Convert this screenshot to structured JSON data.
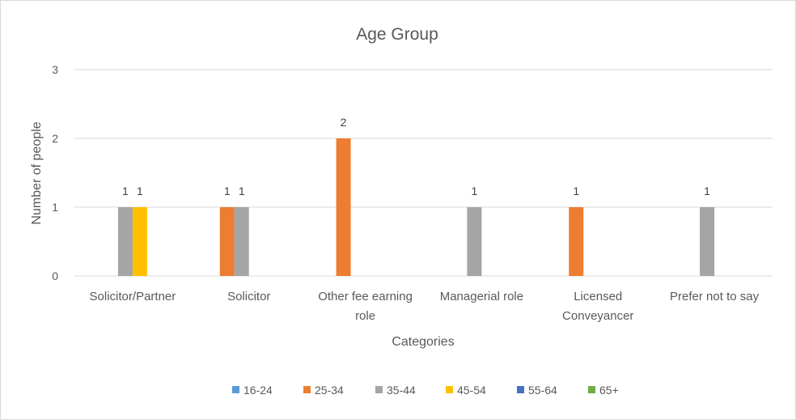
{
  "chart_data": {
    "type": "bar",
    "title": "Age Group",
    "xlabel": "Categories",
    "ylabel": "Number of people",
    "ylim": [
      0,
      3
    ],
    "yticks": [
      "0",
      "1",
      "2",
      "3"
    ],
    "categories": [
      [
        "Solicitor/Partner"
      ],
      [
        "Solicitor"
      ],
      [
        "Other fee earning",
        "role"
      ],
      [
        "Managerial role"
      ],
      [
        "Licensed",
        "Conveyancer"
      ],
      [
        "Prefer not to say"
      ]
    ],
    "series": [
      {
        "name": "16-24",
        "color": "#5B9BD5",
        "values": [
          0,
          0,
          0,
          0,
          0,
          0
        ]
      },
      {
        "name": "25-34",
        "color": "#ED7D31",
        "values": [
          0,
          1,
          2,
          0,
          1,
          0
        ]
      },
      {
        "name": "35-44",
        "color": "#A5A5A5",
        "values": [
          1,
          1,
          0,
          1,
          0,
          1
        ]
      },
      {
        "name": "45-54",
        "color": "#FFC000",
        "values": [
          1,
          0,
          0,
          0,
          0,
          0
        ]
      },
      {
        "name": "55-64",
        "color": "#4472C4",
        "values": [
          0,
          0,
          0,
          0,
          0,
          0
        ]
      },
      {
        "name": "65+",
        "color": "#70AD47",
        "values": [
          0,
          0,
          0,
          0,
          0,
          0
        ]
      }
    ],
    "grid": true,
    "legend": "bottom"
  }
}
